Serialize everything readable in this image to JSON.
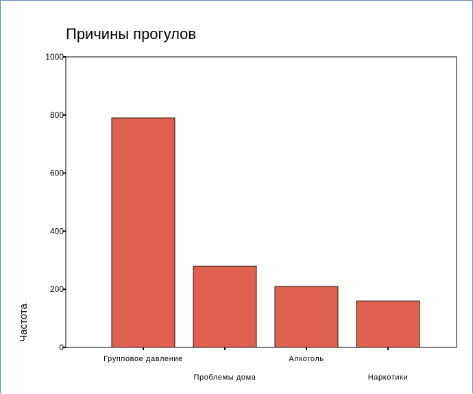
{
  "chart_data": {
    "type": "bar",
    "title": "Причины прогулов",
    "ylabel": "Частота",
    "xlabel": "",
    "categories": [
      "Групповое давление",
      "Проблемы дома",
      "Алкоголь",
      "Наркотики"
    ],
    "values": [
      790,
      280,
      210,
      160
    ],
    "ylim": [
      0,
      1000
    ],
    "yticks": [
      0,
      200,
      400,
      600,
      800,
      1000
    ],
    "grid": false,
    "legend": "none",
    "colors": {
      "bar": "#e06050",
      "bar_edge": "#1a1a1a",
      "axis": "#000000"
    }
  }
}
